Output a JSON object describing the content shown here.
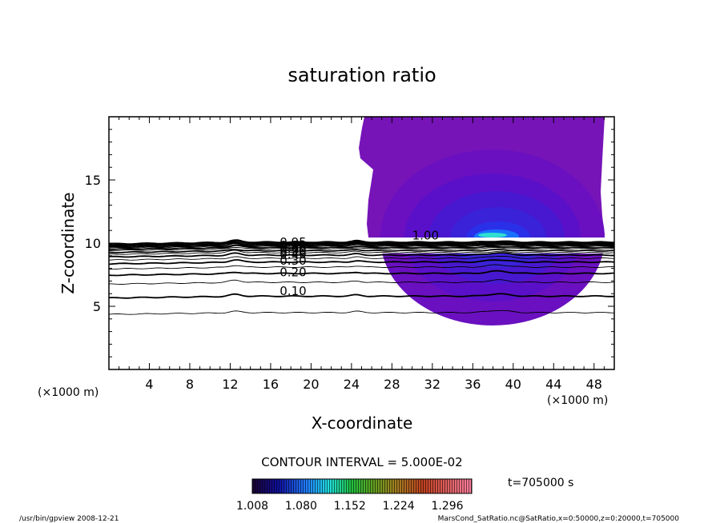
{
  "chart_data": {
    "type": "contour",
    "title": "saturation ratio",
    "xlabel": "X-coordinate",
    "ylabel": "Z-coordinate",
    "x_unit": "(×1000 m)",
    "xlim": [
      0,
      50
    ],
    "ylim": [
      0,
      20
    ],
    "x_ticks": [
      4,
      8,
      12,
      16,
      20,
      24,
      28,
      32,
      36,
      40,
      44,
      48
    ],
    "y_ticks": [
      5,
      10,
      15
    ],
    "contour_interval_label": "CONTOUR INTERVAL = 5.000E-02",
    "contour_levels": [
      0.05,
      0.1,
      0.15,
      0.2,
      0.25,
      0.3,
      0.35,
      0.4,
      0.45,
      0.5,
      0.55,
      0.6,
      0.65,
      0.7,
      0.75,
      0.8,
      0.85,
      0.9,
      0.95,
      1.0
    ],
    "contour_labels": [
      {
        "text": "0.10",
        "x": 16.9,
        "z": 6.2
      },
      {
        "text": "0.20",
        "x": 16.9,
        "z": 7.7
      },
      {
        "text": "0.30",
        "x": 16.9,
        "z": 8.6
      },
      {
        "text": "0.40",
        "x": 16.9,
        "z": 9.1
      },
      {
        "text": "0.50",
        "x": 16.9,
        "z": 9.4
      },
      {
        "text": "0.60",
        "x": 16.9,
        "z": 9.6
      },
      {
        "text": "0.80",
        "x": 16.9,
        "z": 9.8
      },
      {
        "text": "0.95",
        "x": 16.9,
        "z": 10.05
      },
      {
        "text": "1.00",
        "x": 30.0,
        "z": 10.6
      }
    ],
    "colorbar": {
      "ticks": [
        "1.008",
        "1.080",
        "1.152",
        "1.224",
        "1.296"
      ],
      "range": [
        1.008,
        1.332
      ]
    },
    "time_label": "t=705000 s"
  },
  "footer": {
    "left": "/usr/bin/gpview   2008-12-21",
    "right": "MarsCond_SatRatio.nc@SatRatio,x=0:50000,z=0:20000,t=705000"
  }
}
